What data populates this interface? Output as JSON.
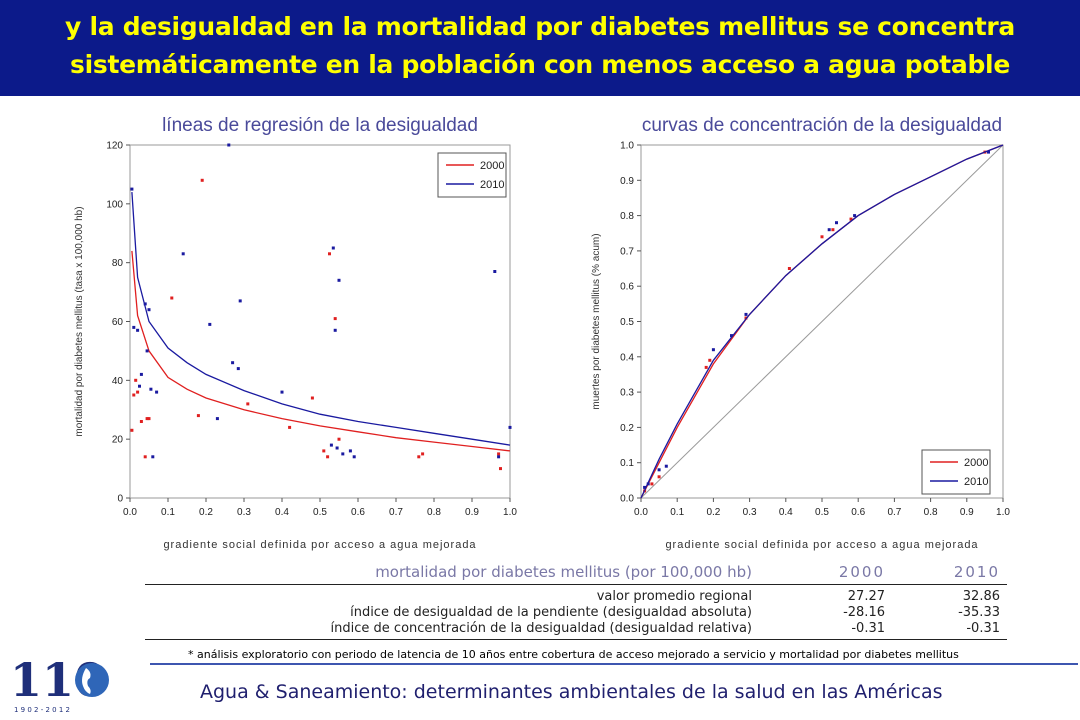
{
  "header": {
    "title_line1": "y la desigualdad en la mortalidad por diabetes mellitus se concentra",
    "title_line2": "sistemáticamente en la población con menos acceso a agua potable"
  },
  "colors": {
    "header_bg": "#0c1a8a",
    "title": "#ffff00",
    "series_2000": "#e02020",
    "series_2010": "#1a1aa0",
    "chart_title": "#4a4a9a"
  },
  "chart_data": [
    {
      "type": "scatter",
      "title": "líneas de regresión de la desigualdad",
      "xlabel": "gradiente social definida por acceso a agua mejorada",
      "ylabel": "mortalidad por diabetes mellitus (tasa x 100,000 hb)",
      "xlim": [
        0,
        1
      ],
      "ylim": [
        0,
        120
      ],
      "x_ticks": [
        "0.0",
        "0.1",
        "0.2",
        "0.3",
        "0.4",
        "0.5",
        "0.6",
        "0.7",
        "0.8",
        "0.9",
        "1.0"
      ],
      "y_ticks": [
        "0",
        "20",
        "40",
        "60",
        "80",
        "100",
        "120"
      ],
      "legend_position": "top-right",
      "series": [
        {
          "name": "2000",
          "color": "#e02020",
          "points": [
            [
              0.005,
              23
            ],
            [
              0.01,
              35
            ],
            [
              0.015,
              40
            ],
            [
              0.02,
              36
            ],
            [
              0.03,
              26
            ],
            [
              0.04,
              14
            ],
            [
              0.045,
              27
            ],
            [
              0.05,
              27
            ],
            [
              0.11,
              68
            ],
            [
              0.18,
              28
            ],
            [
              0.19,
              108
            ],
            [
              0.31,
              32
            ],
            [
              0.42,
              24
            ],
            [
              0.48,
              34
            ],
            [
              0.51,
              16
            ],
            [
              0.52,
              14
            ],
            [
              0.525,
              83
            ],
            [
              0.54,
              61
            ],
            [
              0.55,
              20
            ],
            [
              0.76,
              14
            ],
            [
              0.77,
              15
            ],
            [
              0.97,
              15
            ],
            [
              0.975,
              10
            ]
          ],
          "regression": [
            [
              0.005,
              84
            ],
            [
              0.02,
              62
            ],
            [
              0.05,
              50
            ],
            [
              0.1,
              41
            ],
            [
              0.15,
              37
            ],
            [
              0.2,
              34
            ],
            [
              0.3,
              30
            ],
            [
              0.4,
              27
            ],
            [
              0.5,
              24.5
            ],
            [
              0.6,
              22.5
            ],
            [
              0.7,
              20.5
            ],
            [
              0.8,
              19
            ],
            [
              0.9,
              17.5
            ],
            [
              1.0,
              16
            ]
          ]
        },
        {
          "name": "2010",
          "color": "#1a1aa0",
          "points": [
            [
              0.005,
              105
            ],
            [
              0.01,
              58
            ],
            [
              0.02,
              57
            ],
            [
              0.025,
              38
            ],
            [
              0.03,
              42
            ],
            [
              0.04,
              66
            ],
            [
              0.045,
              50
            ],
            [
              0.05,
              64
            ],
            [
              0.055,
              37
            ],
            [
              0.06,
              14
            ],
            [
              0.07,
              36
            ],
            [
              0.14,
              83
            ],
            [
              0.21,
              59
            ],
            [
              0.23,
              27
            ],
            [
              0.26,
              120
            ],
            [
              0.27,
              46
            ],
            [
              0.285,
              44
            ],
            [
              0.29,
              67
            ],
            [
              0.4,
              36
            ],
            [
              0.53,
              18
            ],
            [
              0.535,
              85
            ],
            [
              0.54,
              57
            ],
            [
              0.545,
              17
            ],
            [
              0.55,
              74
            ],
            [
              0.56,
              15
            ],
            [
              0.58,
              16
            ],
            [
              0.59,
              14
            ],
            [
              0.96,
              77
            ],
            [
              0.97,
              14
            ],
            [
              1.0,
              24
            ]
          ],
          "regression": [
            [
              0.005,
              104
            ],
            [
              0.02,
              75
            ],
            [
              0.05,
              60
            ],
            [
              0.1,
              51
            ],
            [
              0.15,
              46
            ],
            [
              0.2,
              42
            ],
            [
              0.3,
              36.5
            ],
            [
              0.4,
              32
            ],
            [
              0.5,
              28.5
            ],
            [
              0.6,
              26
            ],
            [
              0.7,
              24
            ],
            [
              0.8,
              22
            ],
            [
              0.9,
              20
            ],
            [
              1.0,
              18
            ]
          ]
        }
      ]
    },
    {
      "type": "line",
      "title": "curvas de concentración de la desigualdad",
      "xlabel": "gradiente social definida por acceso a agua mejorada",
      "ylabel": "muertes por diabetes mellitus (% acum)",
      "xlim": [
        0,
        1
      ],
      "ylim": [
        0,
        1
      ],
      "x_ticks": [
        "0.0",
        "0.1",
        "0.2",
        "0.3",
        "0.4",
        "0.5",
        "0.6",
        "0.7",
        "0.8",
        "0.9",
        "1.0"
      ],
      "y_ticks": [
        "0.0",
        "0.1",
        "0.2",
        "0.3",
        "0.4",
        "0.5",
        "0.6",
        "0.7",
        "0.8",
        "0.9",
        "1.0"
      ],
      "legend_position": "bottom-right",
      "equality_line": [
        [
          0,
          0
        ],
        [
          1,
          1
        ]
      ],
      "series": [
        {
          "name": "2000",
          "color": "#e02020",
          "points": [
            [
              0.01,
              0.02
            ],
            [
              0.03,
              0.04
            ],
            [
              0.05,
              0.06
            ],
            [
              0.18,
              0.37
            ],
            [
              0.19,
              0.39
            ],
            [
              0.29,
              0.51
            ],
            [
              0.41,
              0.65
            ],
            [
              0.5,
              0.74
            ],
            [
              0.53,
              0.76
            ],
            [
              0.58,
              0.79
            ],
            [
              0.95,
              0.98
            ]
          ],
          "curve": [
            [
              0,
              0
            ],
            [
              0.05,
              0.1
            ],
            [
              0.1,
              0.2
            ],
            [
              0.2,
              0.38
            ],
            [
              0.3,
              0.52
            ],
            [
              0.4,
              0.63
            ],
            [
              0.5,
              0.72
            ],
            [
              0.6,
              0.8
            ],
            [
              0.7,
              0.86
            ],
            [
              0.8,
              0.91
            ],
            [
              0.9,
              0.96
            ],
            [
              1,
              1
            ]
          ]
        },
        {
          "name": "2010",
          "color": "#1a1aa0",
          "points": [
            [
              0.01,
              0.03
            ],
            [
              0.02,
              0.04
            ],
            [
              0.05,
              0.08
            ],
            [
              0.07,
              0.09
            ],
            [
              0.2,
              0.42
            ],
            [
              0.25,
              0.46
            ],
            [
              0.29,
              0.52
            ],
            [
              0.52,
              0.76
            ],
            [
              0.54,
              0.78
            ],
            [
              0.59,
              0.8
            ],
            [
              0.96,
              0.98
            ]
          ],
          "curve": [
            [
              0,
              0
            ],
            [
              0.05,
              0.11
            ],
            [
              0.1,
              0.21
            ],
            [
              0.2,
              0.39
            ],
            [
              0.3,
              0.52
            ],
            [
              0.4,
              0.63
            ],
            [
              0.5,
              0.72
            ],
            [
              0.6,
              0.8
            ],
            [
              0.7,
              0.86
            ],
            [
              0.8,
              0.91
            ],
            [
              0.9,
              0.96
            ],
            [
              1,
              1
            ]
          ]
        }
      ]
    },
    {
      "type": "table",
      "title": "mortalidad por diabetes mellitus (por 100,000 hb)",
      "columns": [
        "2000",
        "2010"
      ],
      "rows": [
        {
          "label": "valor promedio regional",
          "values": [
            "27.27",
            "32.86"
          ]
        },
        {
          "label": "índice de desigualdad de la pendiente (desigualdad absoluta)",
          "values": [
            "-28.16",
            "-35.33"
          ]
        },
        {
          "label": "índice de concentración de la desigualdad (desigualdad relativa)",
          "values": [
            "-0.31",
            "-0.31"
          ]
        }
      ]
    }
  ],
  "footnote": "* análisis exploratorio con periodo de latencia de 10 años entre cobertura de acceso mejorado a servicio y mortalidad por diabetes mellitus",
  "footer": {
    "text": "Agua & Saneamiento: determinantes ambientales de la salud en las Américas",
    "logo_number": "110",
    "logo_years": "1 9 0 2 - 2 0 1 2"
  }
}
